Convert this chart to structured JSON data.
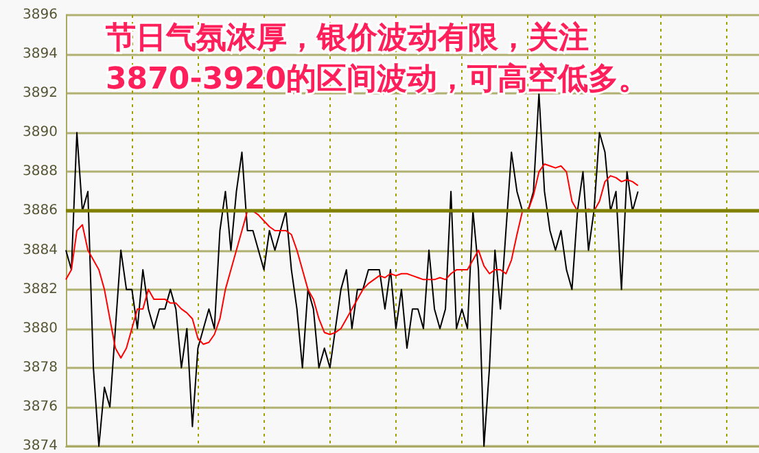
{
  "chart_data": {
    "type": "line",
    "title": "节日气氛浓厚，银价波动有限，关注3870-3920的区间波动，可高空低多。",
    "categories": [
      null,
      null,
      null,
      null,
      null,
      null,
      null,
      null,
      null,
      null,
      null,
      null,
      null,
      null,
      null,
      null,
      null,
      null,
      null,
      null,
      null,
      null,
      null,
      null,
      null,
      null,
      null,
      null,
      null,
      null,
      null,
      null,
      null,
      null,
      null,
      null,
      null,
      null,
      null,
      null,
      null,
      null,
      null,
      null,
      null,
      null,
      null,
      null,
      null,
      null,
      null,
      null,
      null,
      null,
      null,
      null,
      null,
      null,
      null,
      null,
      null,
      null,
      null,
      null,
      null,
      null,
      null,
      null,
      null,
      null,
      null,
      null,
      null,
      null,
      null,
      null,
      null,
      null,
      null,
      null,
      null,
      null,
      null,
      null,
      null,
      null,
      null,
      null,
      null,
      null,
      null,
      null,
      null,
      null,
      null,
      null,
      null,
      null,
      null,
      null,
      null,
      null,
      null,
      null,
      null,
      null,
      null,
      null,
      null,
      null,
      null,
      null,
      null,
      null,
      null,
      null,
      null,
      null,
      null,
      null,
      null,
      null,
      null,
      null,
      null,
      null,
      null
    ],
    "series": [
      {
        "color": "#000000",
        "values": [
          3884,
          3883,
          3890,
          3886,
          3887,
          3878,
          3874,
          3877,
          3876,
          3880,
          3884,
          3882,
          3882,
          3880,
          3883,
          3881,
          3880,
          3881,
          3881,
          3882,
          3881,
          3878,
          3880,
          3875,
          3879,
          3880,
          3881,
          3880,
          3885,
          3887,
          3884,
          3887,
          3889,
          3885,
          3885,
          3884,
          3883,
          3885,
          3884,
          3885,
          3886,
          3883,
          3881,
          3878,
          3882,
          3881,
          3878,
          3879,
          3878,
          3880,
          3882,
          3883,
          3880,
          3882,
          3882,
          3883,
          3883,
          3883,
          3881,
          3883,
          3880,
          3882,
          3879,
          3881,
          3881,
          3880,
          3884,
          3881,
          3880,
          3881,
          3887,
          3880,
          3881,
          3880,
          3886,
          3883,
          3874,
          3878,
          3884,
          3881,
          3885,
          3889,
          3887,
          3886,
          3886,
          3887,
          3892,
          3887,
          3885,
          3884,
          3885,
          3883,
          3882,
          3886,
          3888,
          3884,
          3886,
          3890,
          3889,
          3886,
          3887,
          3882,
          3888,
          3886,
          3887,
          null,
          null,
          null,
          null,
          null,
          null,
          null,
          null,
          null,
          null,
          null,
          null,
          null,
          null,
          null,
          null,
          null,
          null,
          null,
          null,
          null,
          null
        ]
      },
      {
        "color": "#ff0000",
        "values": [
          3882.5,
          3883,
          3885,
          3885.3,
          3884,
          3883.5,
          3883,
          3882,
          3880.5,
          3879,
          3878.5,
          3879,
          3880,
          3881,
          3881,
          3882,
          3881.5,
          3881.5,
          3881.5,
          3881.3,
          3881.3,
          3881,
          3880.8,
          3880.5,
          3879.5,
          3879.2,
          3879.3,
          3879.7,
          3880.5,
          3882,
          3883,
          3884,
          3885,
          3886,
          3886,
          3885.8,
          3885.5,
          3885.2,
          3885,
          3885,
          3885,
          3884.8,
          3884,
          3883,
          3882,
          3881.5,
          3880.5,
          3879.8,
          3879.7,
          3879.8,
          3880,
          3880.5,
          3881,
          3881.5,
          3882,
          3882.3,
          3882.5,
          3882.7,
          3882.6,
          3882.8,
          3882.7,
          3882.8,
          3882.8,
          3882.7,
          3882.6,
          3882.5,
          3882.5,
          3882.5,
          3882.6,
          3882.5,
          3882.8,
          3883,
          3883,
          3883,
          3883.5,
          3884,
          3883.2,
          3882.8,
          3883,
          3883,
          3882.8,
          3883.5,
          3884.8,
          3886,
          3886,
          3886.8,
          3888,
          3888.4,
          3888.3,
          3888.2,
          3888.3,
          3888,
          3886.5,
          3886,
          3886,
          3886.1,
          3886,
          3886.5,
          3887.5,
          3887.8,
          3887.7,
          3887.5,
          3887.6,
          3887.5,
          3887.3,
          null,
          null,
          null,
          null,
          null,
          null,
          null,
          null,
          null,
          null,
          null,
          null,
          null,
          null,
          null,
          null,
          null,
          null,
          null,
          null,
          null,
          null
        ]
      }
    ],
    "ylim": [
      3874,
      3896
    ],
    "yticks": [
      3874,
      3876,
      3878,
      3880,
      3882,
      3884,
      3886,
      3888,
      3890,
      3892,
      3894,
      3896
    ],
    "ref_lines": [
      {
        "axis": "y",
        "value": 3886,
        "color": "#808000"
      }
    ],
    "grid": true,
    "tick_labels": "y",
    "line_style": "solid"
  }
}
